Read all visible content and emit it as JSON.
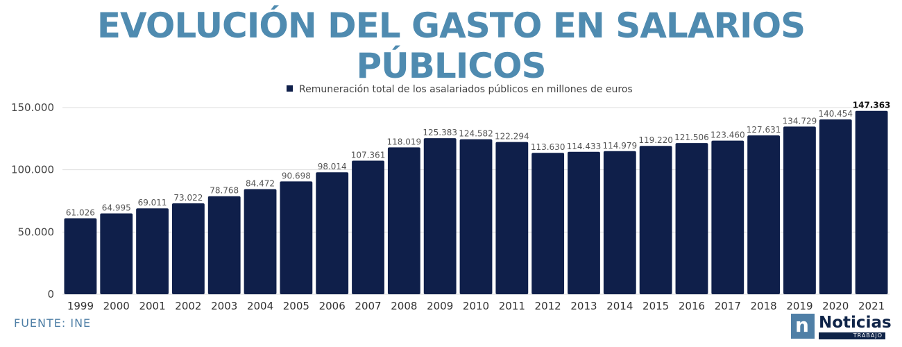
{
  "title": "EVOLUCIÓN DEL GASTO EN SALARIOS PÚBLICOS",
  "source": "FUENTE: INE",
  "logo": {
    "name": "Noticias",
    "sub": "TRABAJO",
    "mark": "n"
  },
  "colors": {
    "bar": "#0f1f4a",
    "title": "#4f8bb0",
    "label": "#555555",
    "grid": "#dddddd"
  },
  "chart_data": {
    "type": "bar",
    "legend": "Remuneración total de los asalariados públicos en millones de euros",
    "legend_position": "top-center",
    "categories": [
      "1999",
      "2000",
      "2001",
      "2002",
      "2003",
      "2004",
      "2005",
      "2006",
      "2007",
      "2008",
      "2009",
      "2010",
      "2011",
      "2012",
      "2013",
      "2014",
      "2015",
      "2016",
      "2017",
      "2018",
      "2019",
      "2020",
      "2021"
    ],
    "values": [
      61026,
      64995,
      69011,
      73022,
      78768,
      84472,
      90698,
      98014,
      107361,
      118019,
      125383,
      124582,
      122294,
      113630,
      114433,
      114979,
      119220,
      121506,
      123460,
      127631,
      134729,
      140454,
      147363
    ],
    "value_labels": [
      "61.026",
      "64.995",
      "69.011",
      "73.022",
      "78.768",
      "84.472",
      "90.698",
      "98.014",
      "107.361",
      "118.019",
      "125.383",
      "124.582",
      "122.294",
      "113.630",
      "114.433",
      "114.979",
      "119.220",
      "121.506",
      "123.460",
      "127.631",
      "134.729",
      "140.454",
      "147.363"
    ],
    "highlight_index": 22,
    "y_ticks": [
      0,
      50000,
      100000,
      150000
    ],
    "y_tick_labels": [
      "0",
      "50.000",
      "100.000",
      "150.000"
    ],
    "ylim": [
      0,
      150000
    ],
    "grid": true
  }
}
